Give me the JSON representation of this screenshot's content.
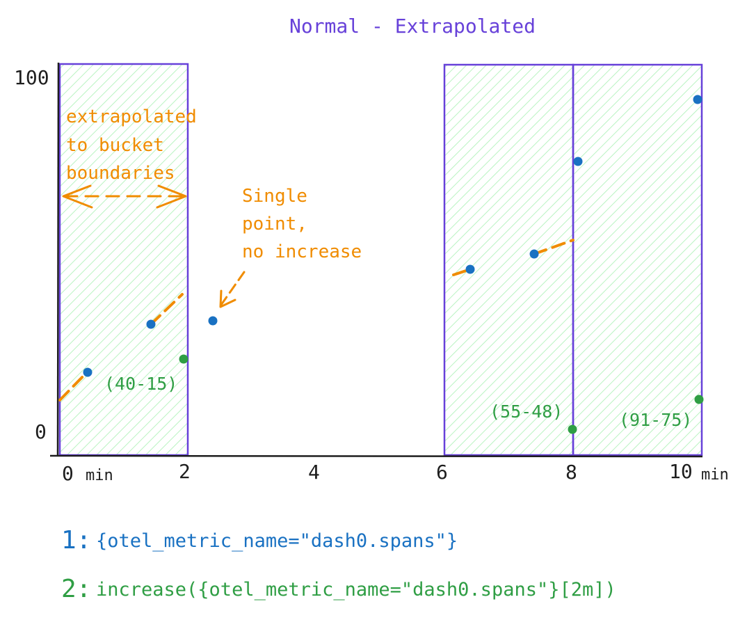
{
  "title": "Normal - Extrapolated",
  "y_axis": {
    "top_label": "100",
    "bottom_label": "0"
  },
  "x_axis": {
    "ticks": [
      {
        "id": "0",
        "label": "0",
        "unit": "min"
      },
      {
        "id": "2",
        "label": "2",
        "unit": ""
      },
      {
        "id": "4",
        "label": "4",
        "unit": ""
      },
      {
        "id": "6",
        "label": "6",
        "unit": ""
      },
      {
        "id": "8",
        "label": "8",
        "unit": ""
      },
      {
        "id": "10",
        "label": "10",
        "unit": "min"
      }
    ]
  },
  "annotations": {
    "extrapolated": [
      "extrapolated",
      "to bucket",
      "boundaries"
    ],
    "single_point": [
      "Single",
      "point,",
      "no increase"
    ],
    "calc_1": "(40-15)",
    "calc_2": "(55-48)",
    "calc_3": "(91-75)"
  },
  "legend": [
    {
      "number": "1:",
      "text": "{otel_metric_name=\"dash0.spans\"}",
      "color": "#1971c2"
    },
    {
      "number": "2:",
      "text": "increase({otel_metric_name=\"dash0.spans\"}[2m])",
      "color": "#2f9e44"
    }
  ],
  "colors": {
    "bucket_border": "#6741d9",
    "bucket_fill": "#b2f2bb",
    "series_1": "#1971c2",
    "series_2": "#2f9e44",
    "annotation": "#f08c00",
    "axis": "#1e1e1e"
  }
}
